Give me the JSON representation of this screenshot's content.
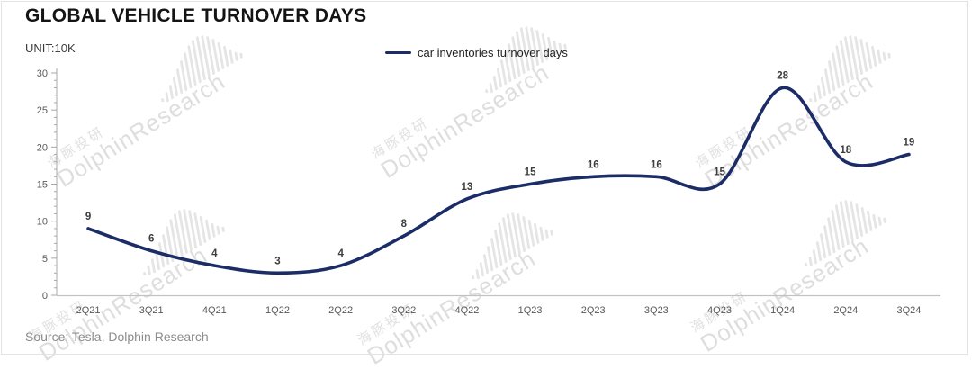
{
  "chart_data": {
    "type": "line",
    "title": "GLOBAL VEHICLE TURNOVER DAYS",
    "unit_label": "UNIT:10K",
    "categories": [
      "2Q21",
      "3Q21",
      "4Q21",
      "1Q22",
      "2Q22",
      "3Q22",
      "4Q22",
      "1Q23",
      "2Q23",
      "3Q23",
      "4Q23",
      "1Q24",
      "2Q24",
      "3Q24"
    ],
    "series": [
      {
        "name": "car inventories turnover days",
        "values": [
          9,
          6,
          4,
          3,
          4,
          8,
          13,
          15,
          16,
          16,
          15,
          28,
          18,
          19
        ],
        "color": "#1b2c66"
      }
    ],
    "ylim": [
      0,
      30
    ],
    "ytick_step": 5,
    "yticks": [
      0,
      5,
      10,
      15,
      20,
      25,
      30
    ],
    "grid": false,
    "smooth": true,
    "data_labels": true,
    "legend_position": "top-center"
  },
  "source": {
    "text": "Source: Tesla, Dolphin Research"
  },
  "watermark": {
    "cn": "海豚投研",
    "en": "DolphinResearch",
    "logo": "whale-soundwave-logo",
    "color": "#dedede"
  },
  "colors": {
    "line": "#1b2c66",
    "y_axis": "#a8a8a8",
    "x_axis": "#c2c2c2",
    "tick_text": "#595959",
    "data_label_text": "#3d3d3d",
    "frame_border": "#e3e3e3"
  }
}
